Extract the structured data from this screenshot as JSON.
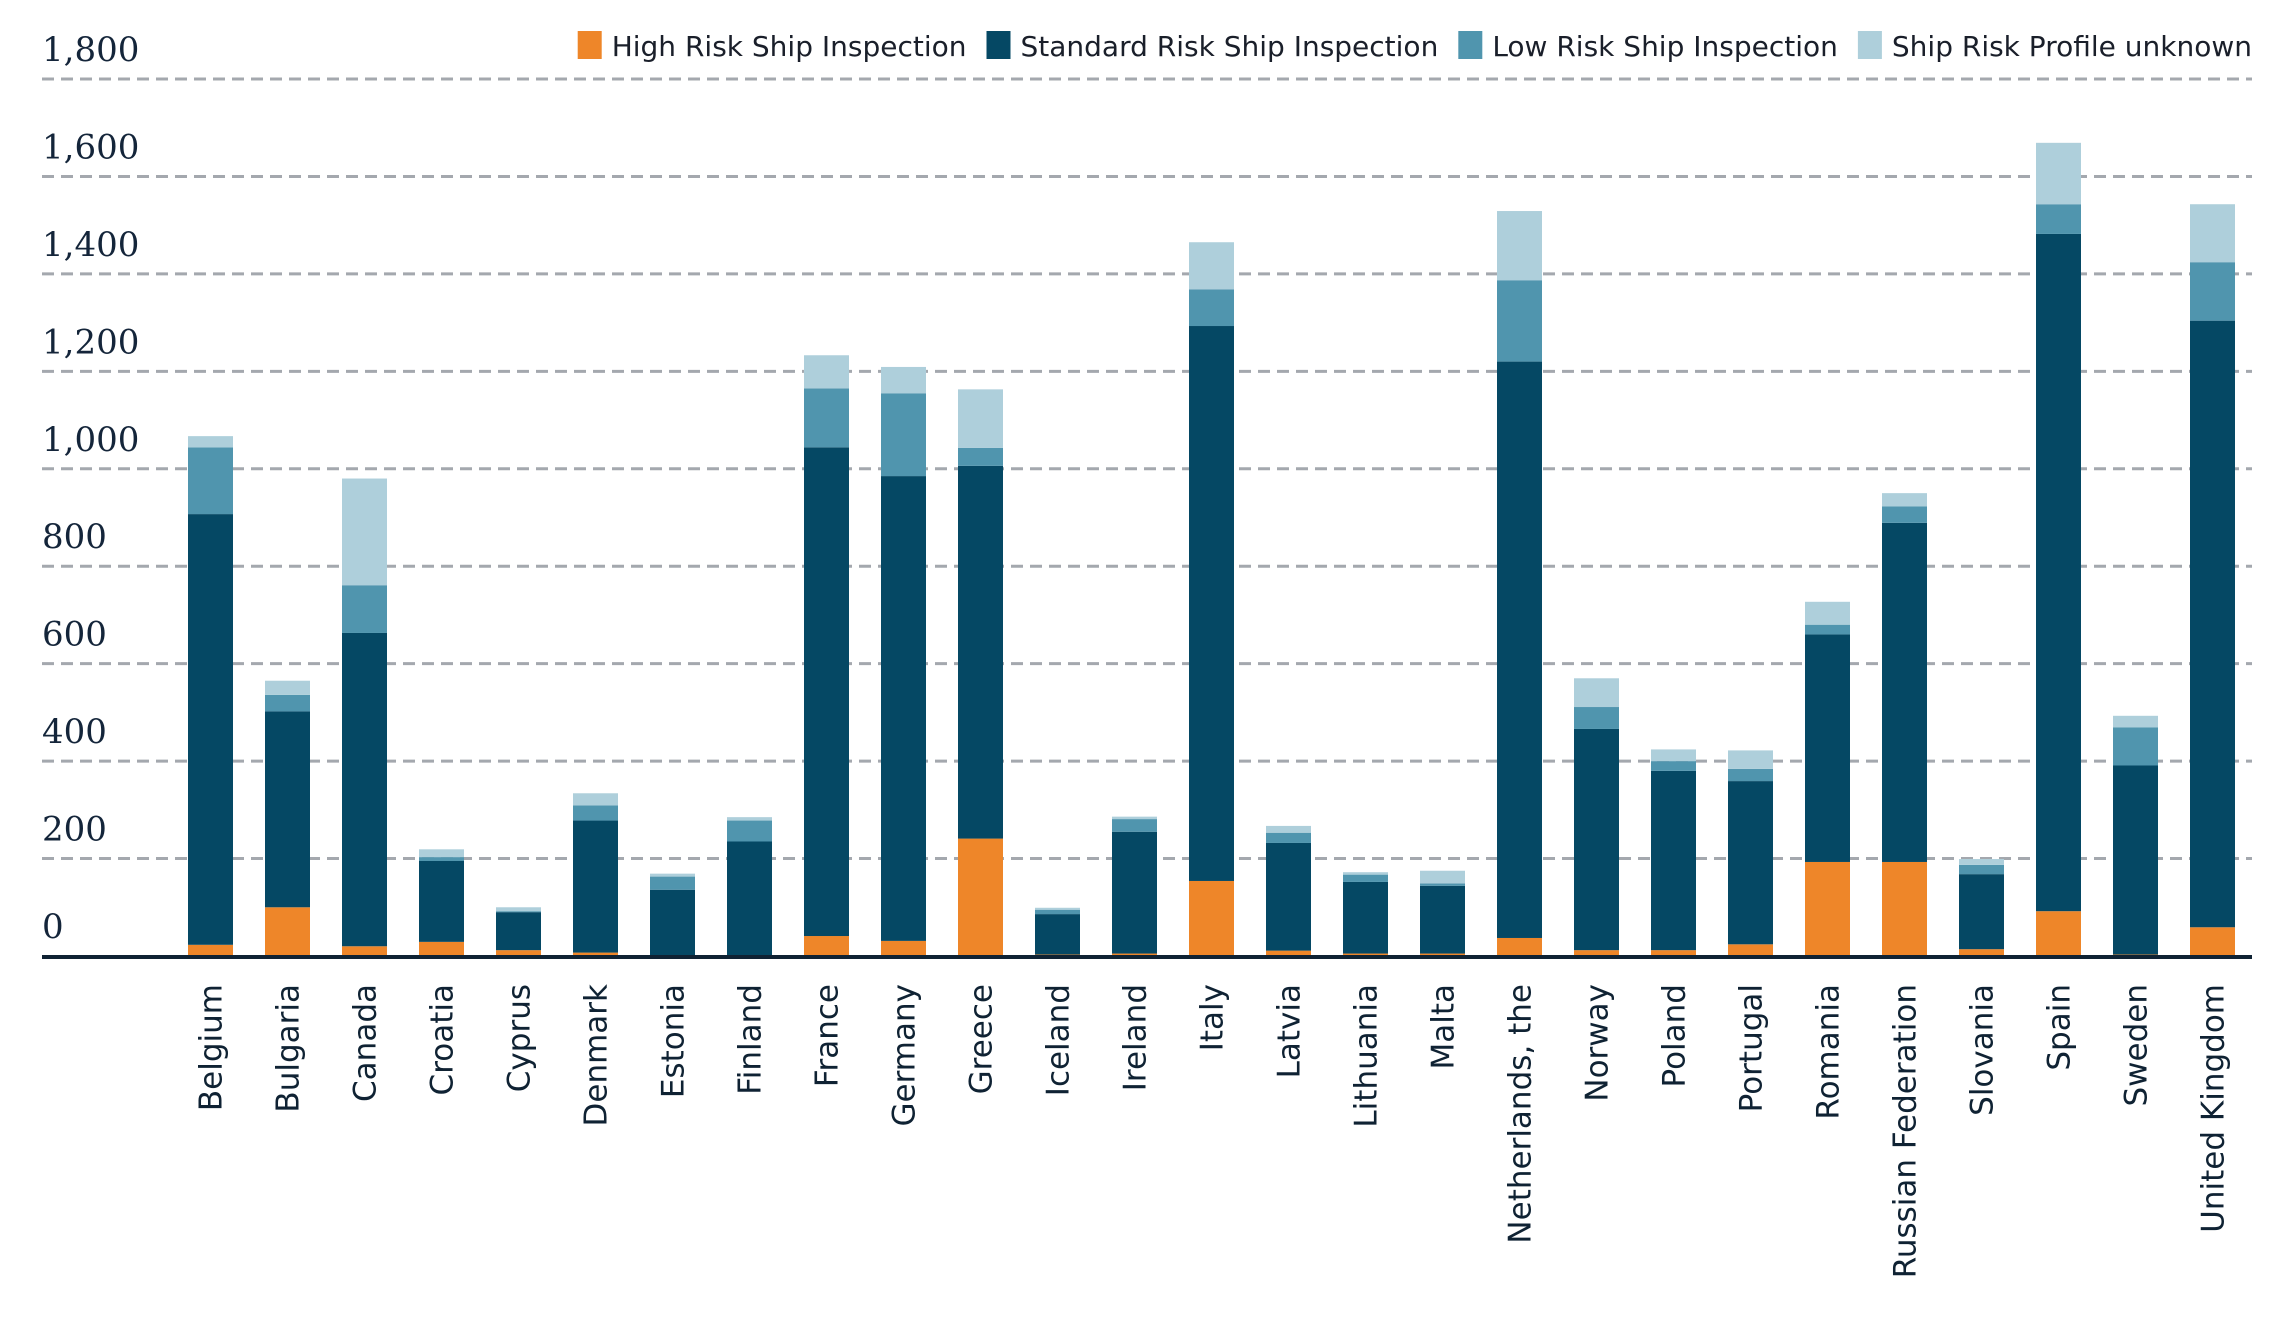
{
  "chart_data": {
    "type": "bar",
    "stacked": true,
    "title": "",
    "xlabel": "",
    "ylabel": "",
    "ylim": [
      0,
      1800
    ],
    "yticks": [
      0,
      200,
      400,
      600,
      800,
      1000,
      1200,
      1400,
      1600,
      1800
    ],
    "ytick_labels": [
      "0",
      "200",
      "400",
      "600",
      "800",
      "1,000",
      "1,200",
      "1,400",
      "1,600",
      "1,800"
    ],
    "grid": true,
    "legend_position": "top-right",
    "categories": [
      "Belgium",
      "Bulgaria",
      "Canada",
      "Croatia",
      "Cyprus",
      "Denmark",
      "Estonia",
      "Finland",
      "France",
      "Germany",
      "Greece",
      "Iceland",
      "Ireland",
      "Italy",
      "Latvia",
      "Lithuania",
      "Malta",
      "Netherlands, the",
      "Norway",
      "Poland",
      "Portugal",
      "Romania",
      "Russian Federation",
      "Slovania",
      "Spain",
      "Sweden",
      "United Kingdom"
    ],
    "series": [
      {
        "name": "High Risk Ship Inspection",
        "color": "#ee8629",
        "values": [
          23,
          100,
          20,
          29,
          12,
          7,
          0,
          0,
          41,
          31,
          241,
          3,
          5,
          154,
          11,
          5,
          5,
          37,
          12,
          12,
          24,
          193,
          193,
          14,
          92,
          3,
          59
        ]
      },
      {
        "name": "Standard Risk Ship Inspection",
        "color": "#054864",
        "values": [
          884,
          402,
          643,
          166,
          78,
          271,
          136,
          235,
          1003,
          954,
          765,
          83,
          250,
          1139,
          221,
          147,
          139,
          1183,
          454,
          368,
          335,
          467,
          696,
          154,
          1390,
          388,
          1245
        ]
      },
      {
        "name": "Low Risk Ship Inspection",
        "color": "#5095ae",
        "values": [
          137,
          34,
          98,
          8,
          2,
          31,
          27,
          43,
          121,
          170,
          37,
          9,
          26,
          75,
          21,
          15,
          5,
          167,
          45,
          20,
          25,
          20,
          34,
          19,
          61,
          78,
          120
        ]
      },
      {
        "name": "Ship Risk Profile unknown",
        "color": "#aecfdb",
        "values": [
          23,
          29,
          219,
          16,
          8,
          25,
          6,
          7,
          68,
          54,
          120,
          4,
          5,
          97,
          14,
          5,
          26,
          142,
          59,
          24,
          38,
          47,
          27,
          12,
          126,
          24,
          119
        ]
      }
    ]
  },
  "colors": {
    "gridline": "#a4a8ae",
    "axis": "#0f2233",
    "text": "#14253a"
  }
}
